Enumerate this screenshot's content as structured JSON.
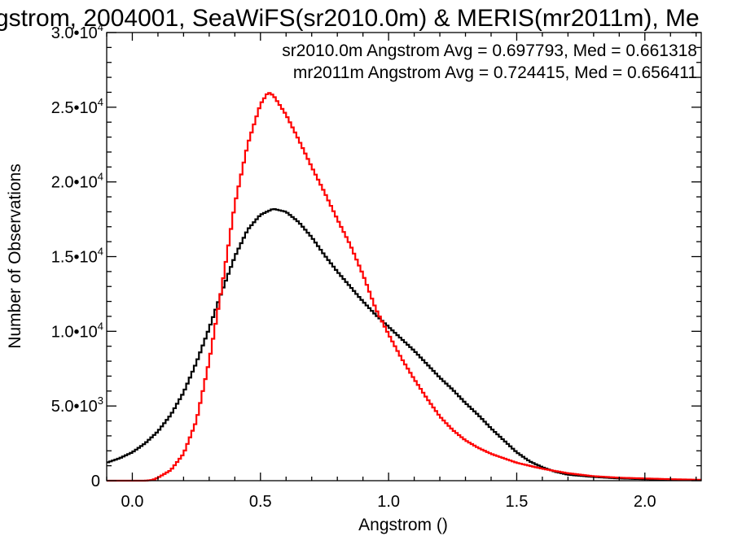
{
  "chart_data": {
    "type": "line",
    "title": "gstrom, 2004001, SeaWiFS(sr2010.0m) & MERIS(mr2011m), Me",
    "xlabel": "Angstrom ()",
    "ylabel": "Number of Observations",
    "xlim": [
      -0.1,
      2.22
    ],
    "ylim": [
      0,
      30000
    ],
    "grid": false,
    "x_ticks": [
      {
        "value": 0.0,
        "label": "0.0"
      },
      {
        "value": 0.5,
        "label": "0.5"
      },
      {
        "value": 1.0,
        "label": "1.0"
      },
      {
        "value": 1.5,
        "label": "1.5"
      },
      {
        "value": 2.0,
        "label": "2.0"
      }
    ],
    "y_ticks": [
      {
        "value": 0,
        "mant": "0",
        "exp": ""
      },
      {
        "value": 5000,
        "mant": "5.0•10",
        "exp": "3"
      },
      {
        "value": 10000,
        "mant": "1.0•10",
        "exp": "4"
      },
      {
        "value": 15000,
        "mant": "1.5•10",
        "exp": "4"
      },
      {
        "value": 20000,
        "mant": "2.0•10",
        "exp": "4"
      },
      {
        "value": 25000,
        "mant": "2.5•10",
        "exp": "4"
      },
      {
        "value": 30000,
        "mant": "3.0•10",
        "exp": "4"
      }
    ],
    "legend_placement": "top-right",
    "series": [
      {
        "name": "sr2010.0m",
        "label": "sr2010.0m Angstrom Avg = 0.697793, Med = 0.661318",
        "color": "#000000",
        "x": [
          -0.1,
          -0.05,
          0.0,
          0.05,
          0.1,
          0.15,
          0.2,
          0.25,
          0.3,
          0.35,
          0.4,
          0.45,
          0.5,
          0.55,
          0.6,
          0.65,
          0.7,
          0.75,
          0.8,
          0.85,
          0.9,
          0.95,
          1.0,
          1.05,
          1.1,
          1.15,
          1.2,
          1.25,
          1.3,
          1.35,
          1.4,
          1.45,
          1.5,
          1.55,
          1.6,
          1.65,
          1.7,
          1.8,
          1.9,
          2.0,
          2.1,
          2.22
        ],
        "y": [
          1200,
          1500,
          1900,
          2500,
          3300,
          4400,
          5900,
          7900,
          10200,
          12700,
          15000,
          16800,
          17800,
          18200,
          18000,
          17300,
          16300,
          15100,
          14000,
          13000,
          12000,
          11100,
          10300,
          9500,
          8700,
          7800,
          6900,
          6100,
          5200,
          4400,
          3500,
          2700,
          1900,
          1300,
          900,
          600,
          400,
          250,
          150,
          100,
          50,
          30
        ]
      },
      {
        "name": "mr2011m",
        "label": "mr2011m Angstrom Avg = 0.724415, Med = 0.656411",
        "color": "#ff0000",
        "x": [
          -0.1,
          0.0,
          0.05,
          0.08,
          0.1,
          0.15,
          0.2,
          0.25,
          0.3,
          0.35,
          0.4,
          0.45,
          0.5,
          0.53,
          0.55,
          0.6,
          0.65,
          0.7,
          0.75,
          0.8,
          0.85,
          0.9,
          0.95,
          1.0,
          1.05,
          1.1,
          1.15,
          1.2,
          1.25,
          1.3,
          1.35,
          1.4,
          1.45,
          1.5,
          1.55,
          1.6,
          1.65,
          1.7,
          1.8,
          1.9,
          2.0,
          2.1,
          2.22
        ],
        "y": [
          0,
          0,
          0,
          50,
          200,
          700,
          1800,
          4000,
          8000,
          13000,
          18500,
          22500,
          25200,
          26000,
          25800,
          24500,
          22800,
          21000,
          19300,
          17500,
          15800,
          13800,
          11500,
          9800,
          8200,
          6800,
          5500,
          4300,
          3400,
          2700,
          2200,
          1800,
          1500,
          1200,
          1000,
          800,
          650,
          500,
          300,
          200,
          150,
          100,
          60
        ]
      }
    ]
  }
}
